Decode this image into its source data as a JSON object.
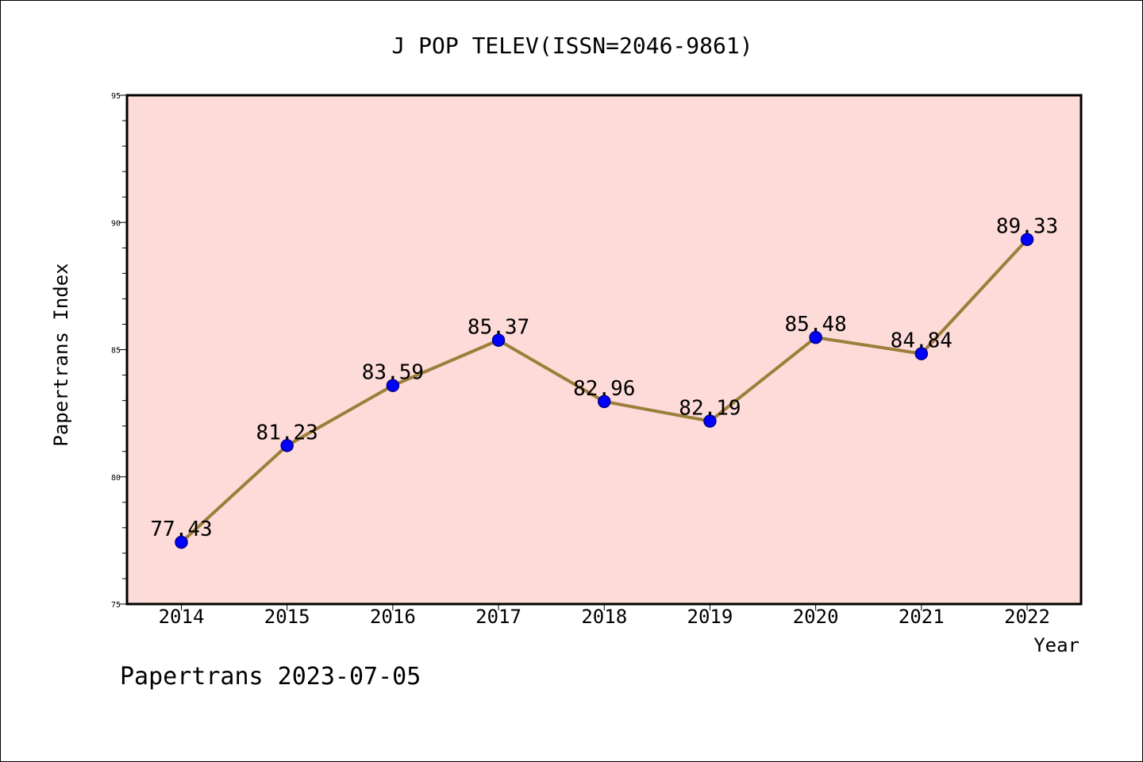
{
  "footer_text": "Papertrans 2023-07-05",
  "chart_data": {
    "type": "line",
    "title": "J POP TELEV(ISSN=2046-9861)",
    "xlabel": "Year",
    "ylabel": "Papertrans Index",
    "categories": [
      "2014",
      "2015",
      "2016",
      "2017",
      "2018",
      "2019",
      "2020",
      "2021",
      "2022"
    ],
    "values": [
      77.43,
      81.23,
      83.59,
      85.37,
      82.96,
      82.19,
      85.48,
      84.84,
      89.33
    ],
    "data_labels": [
      "77.43",
      "81.23",
      "83.59",
      "85.37",
      "82.96",
      "82.19",
      "85.48",
      "84.84",
      "89.33"
    ],
    "ylim": [
      75,
      95
    ],
    "yticks": [
      75,
      80,
      85,
      90,
      95
    ],
    "yminor_step": 1,
    "grid": false,
    "colors": {
      "plot_background": "#fddbd8",
      "line": "#9b7f3a",
      "marker": "#0000ff",
      "marker_edge": "#00008b"
    }
  }
}
